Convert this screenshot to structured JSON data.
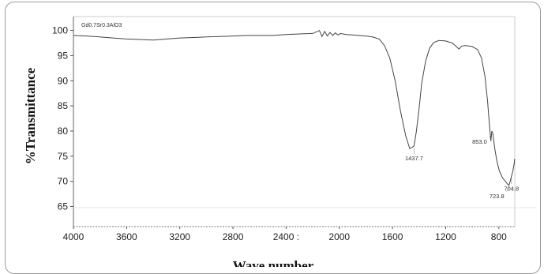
{
  "chart_data": {
    "type": "line",
    "title": "Gd0.7Sr0.3AlO3",
    "xlabel": "Wave number",
    "ylabel": "%Transmittance",
    "xlim": [
      4000,
      680
    ],
    "ylim": [
      61,
      101.5
    ],
    "xticks": [
      {
        "value": 4000,
        "label": "4000"
      },
      {
        "value": 3600,
        "label": "3600"
      },
      {
        "value": 3200,
        "label": "3200"
      },
      {
        "value": 2800,
        "label": "2800"
      },
      {
        "value": 2400,
        "label": "2400 :"
      },
      {
        "value": 2000,
        "label": "2000"
      },
      {
        "value": 1600,
        "label": "1600"
      },
      {
        "value": 1200,
        "label": "1200"
      },
      {
        "value": 800,
        "label": "800"
      }
    ],
    "yticks": [
      65,
      70,
      75,
      80,
      85,
      90,
      95,
      100
    ],
    "grid": false,
    "series": [
      {
        "color": "#444444",
        "points": [
          [
            4000,
            99.0
          ],
          [
            3900,
            98.9
          ],
          [
            3800,
            98.7
          ],
          [
            3700,
            98.5
          ],
          [
            3600,
            98.3
          ],
          [
            3500,
            98.2
          ],
          [
            3400,
            98.1
          ],
          [
            3300,
            98.3
          ],
          [
            3200,
            98.5
          ],
          [
            3100,
            98.6
          ],
          [
            3000,
            98.7
          ],
          [
            2900,
            98.8
          ],
          [
            2800,
            98.9
          ],
          [
            2700,
            99.0
          ],
          [
            2600,
            99.0
          ],
          [
            2500,
            99.0
          ],
          [
            2400,
            99.2
          ],
          [
            2300,
            99.3
          ],
          [
            2200,
            99.4
          ],
          [
            2150,
            100.0
          ],
          [
            2130,
            98.8
          ],
          [
            2110,
            99.8
          ],
          [
            2090,
            98.9
          ],
          [
            2070,
            99.6
          ],
          [
            2050,
            99.0
          ],
          [
            2030,
            99.5
          ],
          [
            2010,
            99.1
          ],
          [
            1990,
            99.4
          ],
          [
            1950,
            99.2
          ],
          [
            1900,
            99.1
          ],
          [
            1850,
            99.0
          ],
          [
            1800,
            98.9
          ],
          [
            1750,
            98.7
          ],
          [
            1700,
            98.3
          ],
          [
            1660,
            97.0
          ],
          [
            1620,
            94.5
          ],
          [
            1580,
            90.0
          ],
          [
            1540,
            84.0
          ],
          [
            1500,
            79.0
          ],
          [
            1470,
            76.5
          ],
          [
            1438,
            77.0
          ],
          [
            1420,
            80.0
          ],
          [
            1400,
            84.5
          ],
          [
            1380,
            89.5
          ],
          [
            1350,
            94.0
          ],
          [
            1320,
            96.5
          ],
          [
            1290,
            97.6
          ],
          [
            1250,
            98.0
          ],
          [
            1200,
            97.9
          ],
          [
            1150,
            97.5
          ],
          [
            1120,
            96.8
          ],
          [
            1100,
            96.3
          ],
          [
            1080,
            96.9
          ],
          [
            1050,
            97.0
          ],
          [
            1000,
            96.8
          ],
          [
            960,
            96.2
          ],
          [
            930,
            94.5
          ],
          [
            905,
            91.0
          ],
          [
            885,
            86.0
          ],
          [
            870,
            81.0
          ],
          [
            860,
            78.0
          ],
          [
            853,
            80.0
          ],
          [
            845,
            79.5
          ],
          [
            830,
            76.5
          ],
          [
            815,
            74.0
          ],
          [
            795,
            72.0
          ],
          [
            770,
            70.6
          ],
          [
            750,
            70.0
          ],
          [
            735,
            69.5
          ],
          [
            723.8,
            69.2
          ],
          [
            715,
            70.0
          ],
          [
            705,
            71.0
          ],
          [
            695,
            72.0
          ],
          [
            685,
            73.5
          ],
          [
            680,
            74.5
          ]
        ]
      }
    ],
    "annotations": [
      {
        "label": "1437.7",
        "x": 1437.7,
        "y": 77.0,
        "pos": "below"
      },
      {
        "label": "853.0",
        "x": 853.0,
        "y": 80.0,
        "pos": "below-left"
      },
      {
        "label": "723.8",
        "x": 723.8,
        "y": 69.2,
        "pos": "below-left"
      },
      {
        "label": "704.8",
        "x": 704.8,
        "y": 71.0,
        "pos": "below"
      }
    ]
  }
}
